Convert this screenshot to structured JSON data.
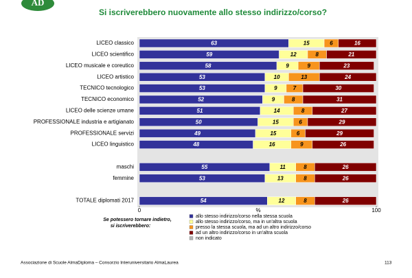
{
  "logo": "AD",
  "footer": {
    "text": "Associazione di Scuole AlmaDiploma – Consorzio Interuniversitario AlmaLaurea",
    "page": "113"
  },
  "chart_data": {
    "type": "stacked-bar-horizontal",
    "title": "Si iscriverebbero nuovamente allo stesso indirizzo/corso?",
    "x_label": "%",
    "legend_title": [
      "Se potessero tornare indietro,",
      "si iscriverebbero:"
    ],
    "categories": [
      "LICEO classico",
      "LICEO scientifico",
      "LICEO musicale e coreutico",
      "LICEO artistico",
      "TECNICO tecnologico",
      "TECNICO economico",
      "LICEO delle scienze umane",
      "PROFESSIONALE industria e artigianato",
      "PROFESSIONALE servizi",
      "LICEO linguistico",
      null,
      "maschi",
      "femmine",
      null,
      "TOTALE diplomati 2017"
    ],
    "series": [
      {
        "name": "allo stesso indirizzo/corso nella stessa scuola",
        "color": "#32329a",
        "values": [
          63,
          59,
          58,
          53,
          53,
          52,
          51,
          50,
          49,
          48,
          null,
          55,
          53,
          null,
          54
        ]
      },
      {
        "name": "allo stesso indirizzo/corso, ma in un'altra scuola",
        "color": "#ffff99",
        "values": [
          15,
          12,
          9,
          10,
          9,
          9,
          14,
          15,
          15,
          16,
          null,
          11,
          13,
          null,
          12
        ]
      },
      {
        "name": "presso la stessa scuola, ma ad un altro indirizzo/corso",
        "color": "#f7941d",
        "values": [
          6,
          8,
          9,
          13,
          7,
          8,
          8,
          6,
          6,
          9,
          null,
          8,
          8,
          null,
          8
        ]
      },
      {
        "name": "ad un altro indirizzo/corso in un'altra scuola",
        "color": "#800000",
        "values": [
          16,
          21,
          23,
          24,
          30,
          31,
          27,
          29,
          29,
          26,
          null,
          26,
          26,
          null,
          26
        ]
      },
      {
        "name": "non indicato",
        "color": "#b4b4b4",
        "values": [
          0,
          0,
          0,
          0,
          0,
          0,
          0,
          0,
          0,
          0,
          null,
          0,
          0,
          null,
          0
        ]
      }
    ],
    "xlim": [
      0,
      100
    ],
    "xticks": [
      0,
      100
    ]
  }
}
